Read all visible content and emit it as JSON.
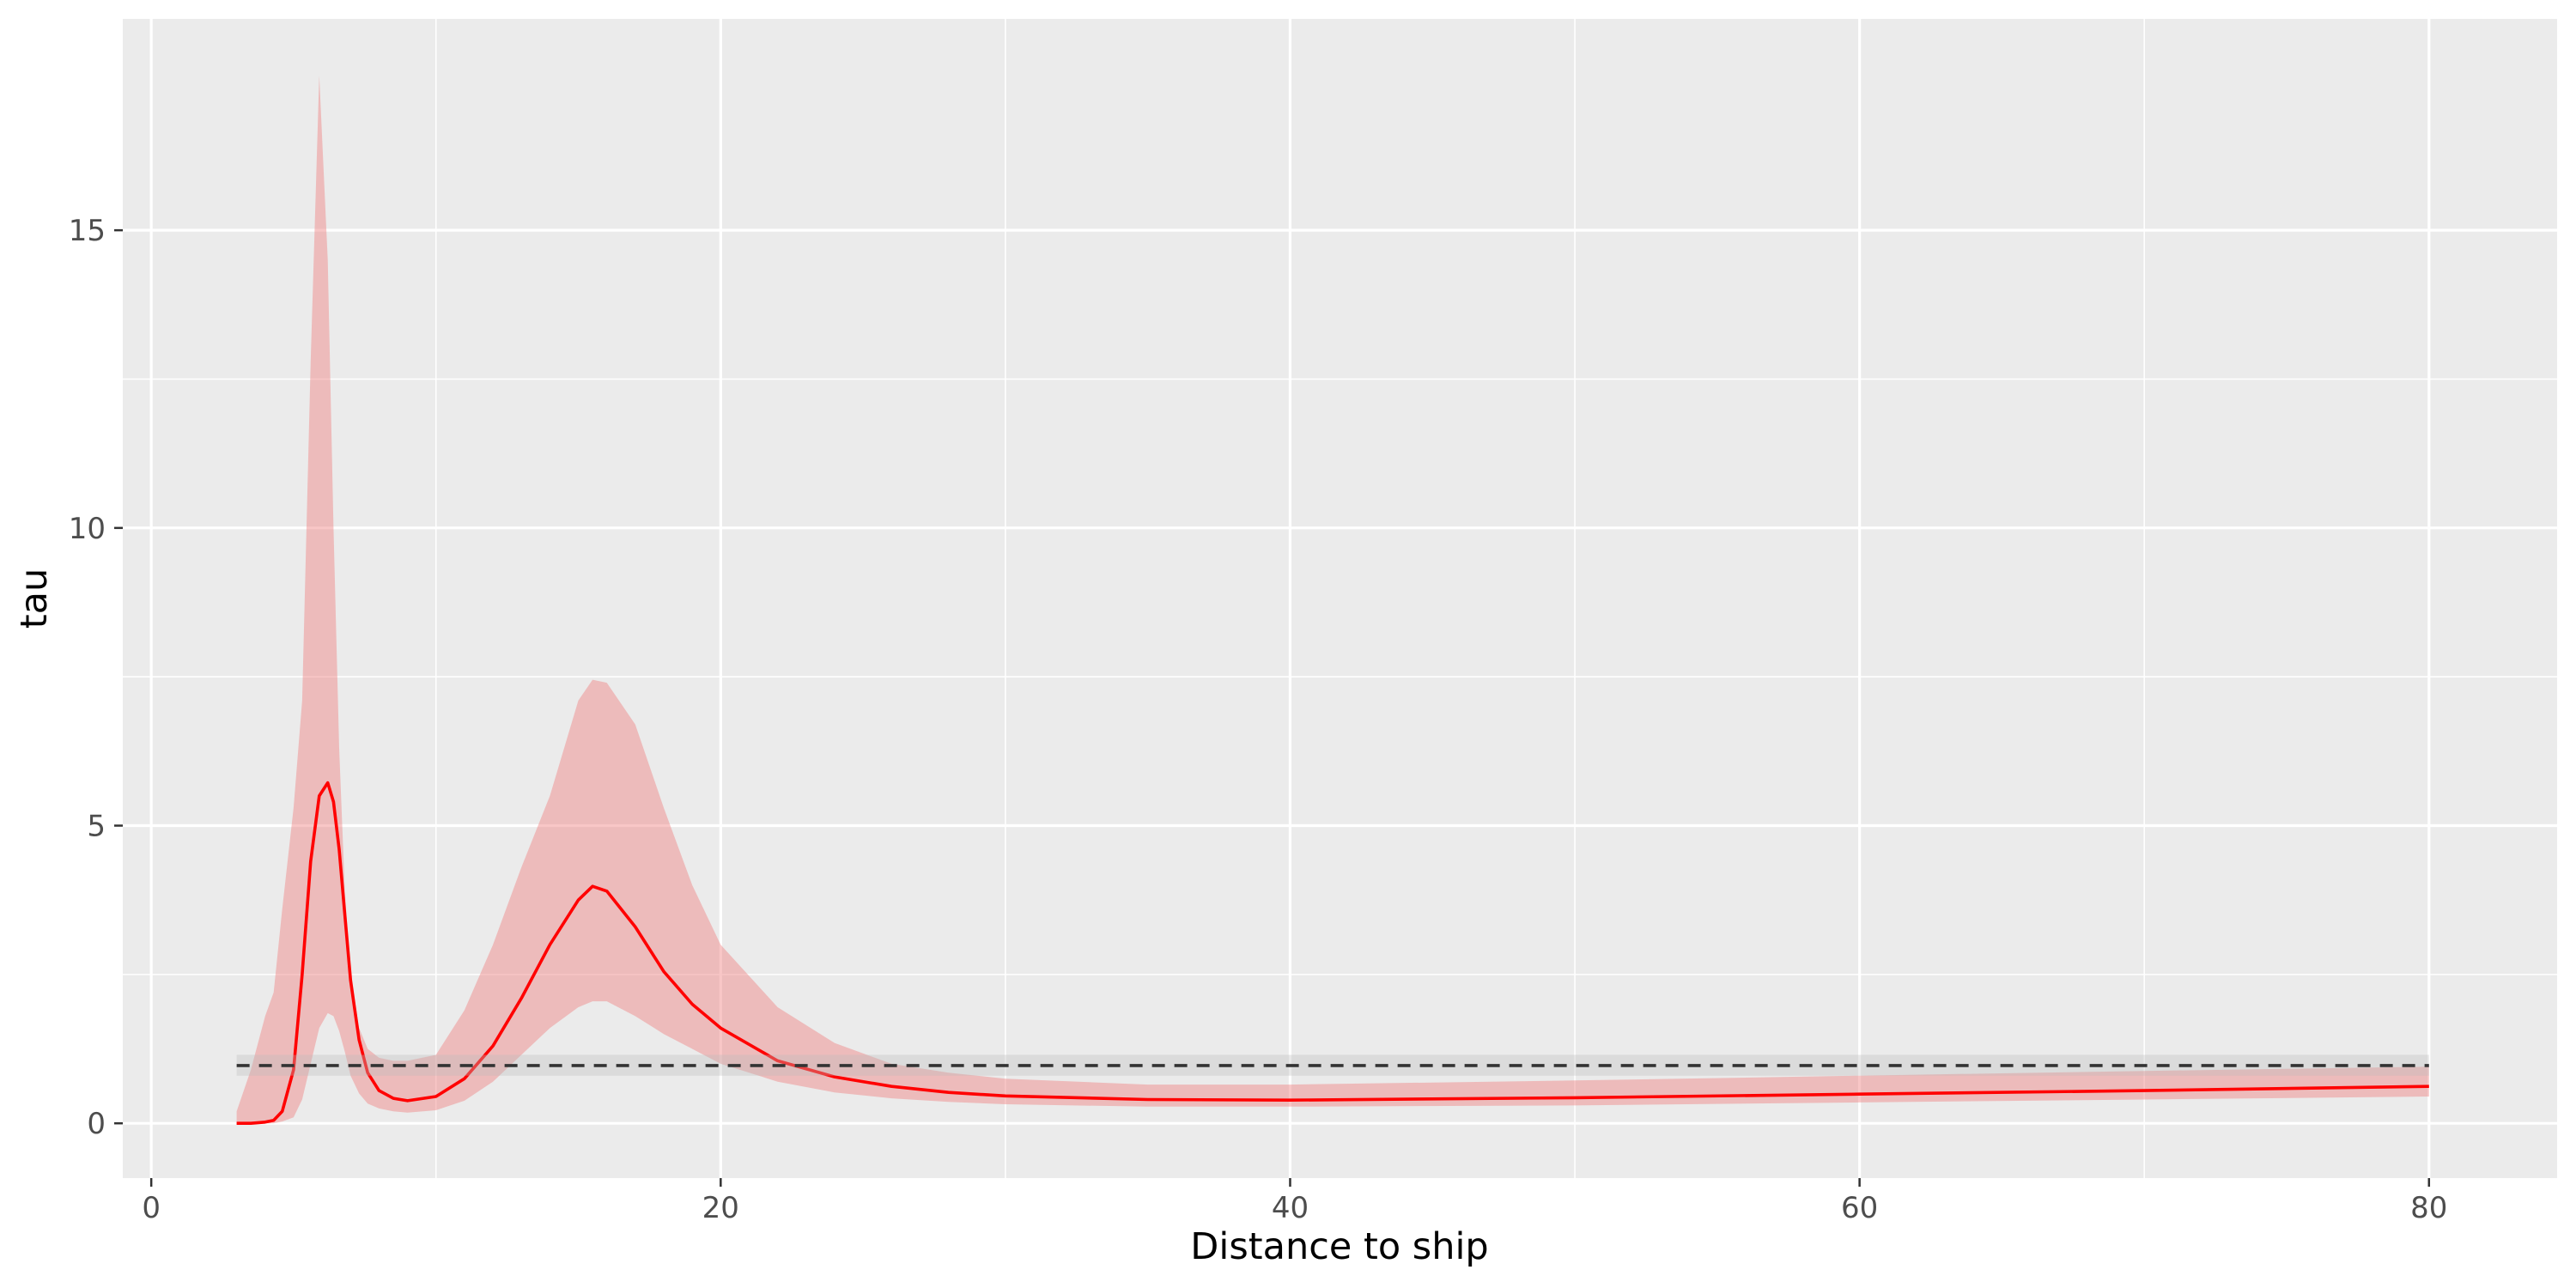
{
  "chart_data": {
    "type": "line",
    "title": "",
    "xlabel": "Distance to ship",
    "ylabel": "tau",
    "xlim": [
      -1,
      84.5
    ],
    "ylim": [
      -0.92,
      18.55
    ],
    "x_ticks": [
      0,
      20,
      40,
      60,
      80
    ],
    "x_tick_labels": [
      "0",
      "20",
      "40",
      "60",
      "80"
    ],
    "x_minor_ticks": [
      10,
      30,
      50,
      70
    ],
    "y_ticks": [
      0,
      5,
      10,
      15
    ],
    "y_tick_labels": [
      "0",
      "5",
      "10",
      "15"
    ],
    "y_minor_ticks": [
      2.5,
      7.5,
      12.5
    ],
    "grid": true,
    "legend": "none",
    "colors": {
      "panel": "#EBEBEB",
      "grid": "#FFFFFF",
      "fit_line": "#FF0000",
      "fit_ribbon": "#F08080",
      "reference_line": "#333333",
      "reference_ribbon": "#BEBEBE"
    },
    "series": [
      {
        "kind": "ribbon_line",
        "x": [
          3,
          3.5,
          4,
          4.3,
          4.6,
          5,
          5.3,
          5.6,
          5.9,
          6.2,
          6.4,
          6.6,
          6.8,
          7.0,
          7.3,
          7.6,
          8,
          8.5,
          9,
          10,
          11,
          12,
          13,
          14,
          15,
          15.5,
          16,
          17,
          18,
          19,
          20,
          22,
          24,
          26,
          28,
          30,
          35,
          40,
          50,
          60,
          70,
          80
        ],
        "y": [
          0.0,
          0.0,
          0.02,
          0.05,
          0.2,
          0.9,
          2.5,
          4.4,
          5.5,
          5.72,
          5.4,
          4.6,
          3.5,
          2.4,
          1.4,
          0.85,
          0.55,
          0.42,
          0.38,
          0.45,
          0.75,
          1.3,
          2.1,
          3.0,
          3.75,
          3.98,
          3.9,
          3.3,
          2.55,
          2.0,
          1.6,
          1.05,
          0.78,
          0.62,
          0.52,
          0.46,
          0.4,
          0.39,
          0.43,
          0.49,
          0.55,
          0.62
        ],
        "lower": [
          0.0,
          0.0,
          0.0,
          0.0,
          0.03,
          0.1,
          0.4,
          1.0,
          1.6,
          1.85,
          1.8,
          1.55,
          1.2,
          0.8,
          0.5,
          0.33,
          0.25,
          0.2,
          0.18,
          0.22,
          0.38,
          0.7,
          1.15,
          1.6,
          1.95,
          2.05,
          2.05,
          1.8,
          1.5,
          1.25,
          1.0,
          0.7,
          0.52,
          0.42,
          0.36,
          0.32,
          0.28,
          0.28,
          0.3,
          0.35,
          0.4,
          0.45
        ],
        "upper": [
          0.2,
          0.9,
          1.8,
          2.2,
          3.6,
          5.3,
          7.1,
          12.8,
          17.6,
          14.5,
          10.0,
          6.3,
          3.9,
          2.5,
          1.6,
          1.25,
          1.1,
          1.05,
          1.05,
          1.15,
          1.9,
          3.0,
          4.3,
          5.5,
          7.1,
          7.45,
          7.4,
          6.7,
          5.3,
          4.0,
          3.0,
          1.95,
          1.35,
          1.0,
          0.85,
          0.75,
          0.65,
          0.65,
          0.72,
          0.8,
          0.88,
          0.95
        ]
      },
      {
        "kind": "reference",
        "x": [
          3,
          80
        ],
        "y": 0.97,
        "lower": 0.8,
        "upper": 1.15,
        "style": "dashed"
      }
    ]
  }
}
